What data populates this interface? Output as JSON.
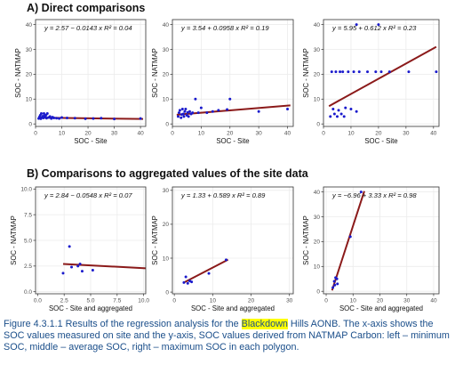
{
  "section_a_title": "A)  Direct comparisons",
  "section_b_title": "B)  Comparisons to aggregated values of the site data",
  "caption": {
    "before": "Figure 4.3.1.1 Results of the regression analysis for the ",
    "highlight": "Blackdown",
    "after": " Hills AONB. The x-axis shows the SOC values measured on site and the y-axis, SOC values derived from NATMAP Carbon: left – minimum SOC, middle – average SOC, right – maximum SOC in each polygon."
  },
  "colors": {
    "points": "#1a1acc",
    "fit_line": "#8b1a1a",
    "grid": "#ebebeb",
    "panel_border": "#333333",
    "caption_text": "#1a4e8a",
    "highlight": "#ffff00"
  },
  "chart_data": [
    {
      "id": "a1",
      "type": "scatter",
      "equation": "y = 2.57 − 0.0143 x   R² = 0.04",
      "xlabel": "SOC - Site",
      "ylabel": "SOC - NATMAP",
      "xlim": [
        0,
        42
      ],
      "ylim": [
        -1,
        42
      ],
      "xticks": [
        0,
        10,
        20,
        30,
        40
      ],
      "yticks": [
        0,
        10,
        20,
        30,
        40
      ],
      "fit": {
        "intercept": 2.57,
        "slope": -0.0143,
        "x_range": [
          1,
          41
        ]
      },
      "points": [
        [
          1.2,
          2.2
        ],
        [
          1.5,
          2.8
        ],
        [
          1.8,
          3.5
        ],
        [
          2,
          2.1
        ],
        [
          2.2,
          4.2
        ],
        [
          2.5,
          2.6
        ],
        [
          2.8,
          3.1
        ],
        [
          3,
          2.4
        ],
        [
          3.2,
          4.2
        ],
        [
          3.5,
          3.2
        ],
        [
          3.8,
          2.7
        ],
        [
          4,
          3.6
        ],
        [
          4.2,
          2.3
        ],
        [
          4.5,
          4.2
        ],
        [
          5,
          2.6
        ],
        [
          5.5,
          3
        ],
        [
          6,
          2.2
        ],
        [
          6.5,
          2.7
        ],
        [
          7,
          2.4
        ],
        [
          8,
          2.3
        ],
        [
          9,
          2.2
        ],
        [
          10,
          2.6
        ],
        [
          12,
          2.4
        ],
        [
          15,
          2.3
        ],
        [
          19,
          2.1
        ],
        [
          22,
          2.2
        ],
        [
          25,
          2.3
        ],
        [
          30,
          2
        ],
        [
          40,
          2.2
        ]
      ]
    },
    {
      "id": "a2",
      "type": "scatter",
      "equation": "y = 3.54 + 0.0958 x   R² = 0.19",
      "xlabel": "SOC - Site",
      "ylabel": "SOC - NATMAP",
      "xlim": [
        0,
        42
      ],
      "ylim": [
        -1,
        42
      ],
      "xticks": [
        0,
        10,
        20,
        30,
        40
      ],
      "yticks": [
        0,
        10,
        20,
        30,
        40
      ],
      "fit": {
        "intercept": 3.54,
        "slope": 0.0958,
        "x_range": [
          1.5,
          41
        ]
      },
      "points": [
        [
          2,
          3
        ],
        [
          2.3,
          4.5
        ],
        [
          2.6,
          5.5
        ],
        [
          3,
          2.5
        ],
        [
          3.2,
          3.8
        ],
        [
          3.5,
          6
        ],
        [
          3.8,
          4
        ],
        [
          4,
          3
        ],
        [
          4.3,
          5
        ],
        [
          4.6,
          6
        ],
        [
          5,
          3.5
        ],
        [
          5.3,
          4.6
        ],
        [
          5.6,
          3
        ],
        [
          6,
          5
        ],
        [
          6.5,
          4
        ],
        [
          7,
          4.5
        ],
        [
          8,
          10
        ],
        [
          9,
          4.5
        ],
        [
          10,
          6.5
        ],
        [
          12,
          4.5
        ],
        [
          14,
          5
        ],
        [
          16,
          5.5
        ],
        [
          19,
          5.8
        ],
        [
          20,
          10
        ],
        [
          30,
          5
        ],
        [
          40,
          6
        ]
      ]
    },
    {
      "id": "a3",
      "type": "scatter",
      "equation": "y = 5.95 + 0.612 x   R² = 0.23",
      "xlabel": "SOC - Site",
      "ylabel": "SOC - NATMAP",
      "xlim": [
        0,
        42
      ],
      "ylim": [
        -1,
        42
      ],
      "xticks": [
        0,
        10,
        20,
        30,
        40
      ],
      "yticks": [
        0,
        10,
        20,
        30,
        40
      ],
      "fit": {
        "intercept": 5.95,
        "slope": 0.612,
        "x_range": [
          2,
          41
        ]
      },
      "points": [
        [
          2.5,
          3
        ],
        [
          3,
          21
        ],
        [
          3.5,
          6
        ],
        [
          4,
          4
        ],
        [
          4.5,
          21
        ],
        [
          5,
          3
        ],
        [
          5.5,
          5.5
        ],
        [
          6,
          21
        ],
        [
          6.5,
          4
        ],
        [
          7,
          21
        ],
        [
          7.5,
          3
        ],
        [
          8,
          6.5
        ],
        [
          9,
          21
        ],
        [
          10,
          6
        ],
        [
          11,
          21
        ],
        [
          12,
          5
        ],
        [
          13,
          21
        ],
        [
          16,
          21
        ],
        [
          19,
          21
        ],
        [
          21,
          21
        ],
        [
          24,
          21
        ],
        [
          31,
          21
        ],
        [
          41,
          21
        ],
        [
          12,
          40
        ],
        [
          20,
          40
        ]
      ]
    },
    {
      "id": "b1",
      "type": "scatter",
      "equation": "y = 2.84 − 0.0548 x   R² = 0.07",
      "xlabel": "SOC - Site and aggregated",
      "ylabel": "SOC - NATMAP",
      "xlim": [
        -0.2,
        10.2
      ],
      "ylim": [
        -0.2,
        10.2
      ],
      "xticks": [
        0.0,
        2.5,
        5.0,
        7.5,
        10.0
      ],
      "yticks": [
        0.0,
        2.5,
        5.0,
        7.5,
        10.0
      ],
      "xtick_labels": [
        "0.0",
        "2.5",
        "5.0",
        "7.5",
        "10.0"
      ],
      "ytick_labels": [
        "0.0",
        "2.5",
        "5.0",
        "7.5",
        "10.0"
      ],
      "fit": {
        "intercept": 2.84,
        "slope": -0.0548,
        "x_range": [
          2.4,
          10.2
        ]
      },
      "points": [
        [
          2.4,
          1.8
        ],
        [
          3,
          4.4
        ],
        [
          3.2,
          2.4
        ],
        [
          3.8,
          2.5
        ],
        [
          4,
          2.7
        ],
        [
          4.2,
          2.0
        ],
        [
          5.2,
          2.1
        ]
      ]
    },
    {
      "id": "b2",
      "type": "scatter",
      "equation": "y = 1.33 + 0.589 x   R² = 0.89",
      "xlabel": "SOC - Site and aggregated",
      "ylabel": "SOC - NATMAP",
      "xlim": [
        -0.5,
        31
      ],
      "ylim": [
        -0.5,
        31
      ],
      "xticks": [
        0,
        10,
        20,
        30
      ],
      "yticks": [
        0,
        10,
        20,
        30
      ],
      "fit": {
        "intercept": 1.33,
        "slope": 0.589,
        "x_range": [
          2.5,
          14
        ]
      },
      "points": [
        [
          2.5,
          2.8
        ],
        [
          3,
          4.5
        ],
        [
          3.5,
          2.6
        ],
        [
          4,
          3.3
        ],
        [
          4.5,
          3.0
        ],
        [
          9,
          5.5
        ],
        [
          13.5,
          9.5
        ]
      ]
    },
    {
      "id": "b3",
      "type": "scatter",
      "equation": "y = −6.96 + 3.33 x   R² = 0.98",
      "xlabel": "SOC - Site and aggregated",
      "ylabel": "SOC - NATMAP",
      "xlim": [
        -1,
        42
      ],
      "ylim": [
        -1,
        42
      ],
      "xticks": [
        0,
        10,
        20,
        30,
        40
      ],
      "yticks": [
        0,
        10,
        20,
        30,
        40
      ],
      "fit": {
        "intercept": -6.96,
        "slope": 3.33,
        "x_range": [
          2.2,
          14.2
        ]
      },
      "points": [
        [
          2.5,
          1.5
        ],
        [
          3,
          4
        ],
        [
          3.2,
          2.5
        ],
        [
          3.5,
          5.5
        ],
        [
          4,
          5
        ],
        [
          4.2,
          3
        ],
        [
          9,
          22
        ],
        [
          13,
          40
        ]
      ]
    }
  ]
}
